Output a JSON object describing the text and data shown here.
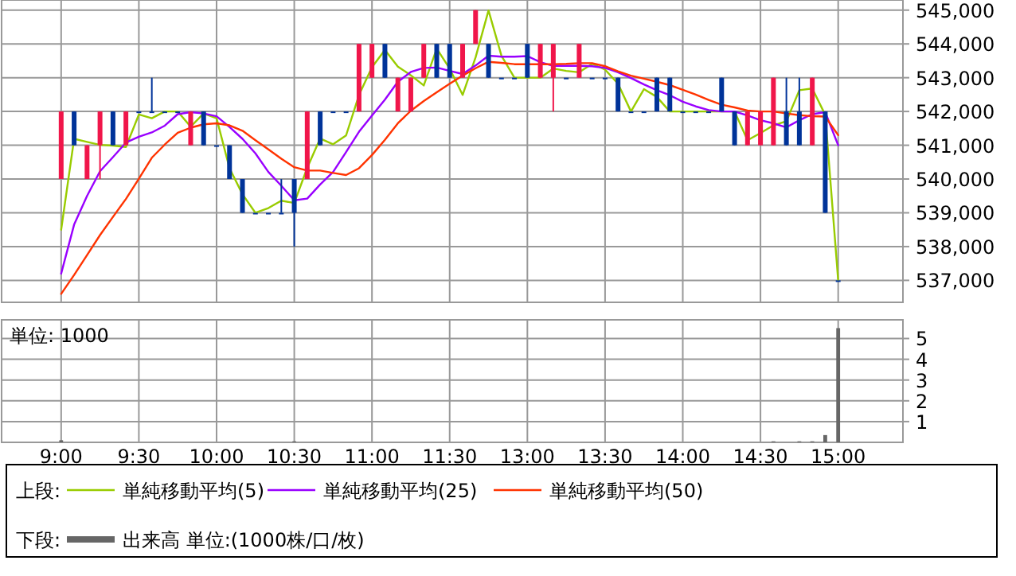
{
  "chart_data": [
    {
      "type": "candlestick",
      "categories": [
        null,
        null,
        null,
        null,
        null,
        null,
        null,
        null,
        null,
        null,
        null,
        null,
        null,
        null,
        null,
        null,
        null,
        null,
        null,
        null,
        null,
        null,
        null,
        null,
        null,
        null,
        null,
        null,
        null,
        null,
        null,
        null,
        null,
        null,
        null,
        null,
        null,
        null,
        null,
        null,
        null,
        null,
        null,
        null,
        null,
        null,
        null,
        null,
        null,
        null,
        null,
        null,
        null,
        null,
        null,
        null,
        null,
        null,
        null,
        null,
        null
      ],
      "ohlc": [
        [
          540000,
          542000,
          540000,
          542000
        ],
        [
          542000,
          542000,
          541000,
          541000
        ],
        [
          540000,
          541000,
          540000,
          541000
        ],
        [
          541000,
          542000,
          540000,
          542000
        ],
        [
          542000,
          542000,
          541000,
          541000
        ],
        [
          541000,
          542000,
          541000,
          542000
        ],
        [
          542000,
          542000,
          542000,
          542000
        ],
        [
          542000,
          543000,
          542000,
          542000
        ],
        [
          542000,
          542000,
          542000,
          542000
        ],
        [
          542000,
          542000,
          542000,
          542000
        ],
        [
          541000,
          542000,
          541000,
          542000
        ],
        [
          542000,
          542000,
          541000,
          541000
        ],
        [
          541000,
          541000,
          541000,
          541000
        ],
        [
          541000,
          541000,
          540000,
          540000
        ],
        [
          540000,
          540000,
          539000,
          539000
        ],
        [
          539000,
          539000,
          539000,
          539000
        ],
        [
          539000,
          539000,
          539000,
          539000
        ],
        [
          539000,
          540000,
          539000,
          539000
        ],
        [
          540000,
          540000,
          538000,
          539000
        ],
        [
          540000,
          542000,
          540000,
          542000
        ],
        [
          542000,
          542000,
          541000,
          541000
        ],
        [
          542000,
          542000,
          542000,
          542000
        ],
        [
          542000,
          542000,
          542000,
          542000
        ],
        [
          542000,
          544000,
          542000,
          544000
        ],
        [
          543000,
          544000,
          543000,
          544000
        ],
        [
          544000,
          544000,
          543000,
          543000
        ],
        [
          542000,
          543000,
          542000,
          543000
        ],
        [
          542000,
          543000,
          542000,
          543000
        ],
        [
          543000,
          544000,
          543000,
          544000
        ],
        [
          544000,
          544000,
          543000,
          543000
        ],
        [
          544000,
          544000,
          543000,
          543000
        ],
        [
          543000,
          544000,
          543000,
          544000
        ],
        [
          544000,
          545000,
          544000,
          545000
        ],
        [
          544000,
          544000,
          543000,
          543000
        ],
        [
          543000,
          543000,
          543000,
          543000
        ],
        [
          543000,
          543000,
          543000,
          543000
        ],
        [
          544000,
          544000,
          543000,
          543000
        ],
        [
          543000,
          544000,
          543000,
          544000
        ],
        [
          543000,
          544000,
          542000,
          544000
        ],
        [
          543000,
          543000,
          543000,
          543000
        ],
        [
          543000,
          544000,
          543000,
          544000
        ],
        [
          543000,
          543000,
          543000,
          543000
        ],
        [
          543000,
          543000,
          543000,
          543000
        ],
        [
          543000,
          543000,
          542000,
          542000
        ],
        [
          542000,
          542000,
          542000,
          542000
        ],
        [
          542000,
          542000,
          542000,
          542000
        ],
        [
          543000,
          543000,
          542000,
          542000
        ],
        [
          543000,
          543000,
          542000,
          542000
        ],
        [
          542000,
          542000,
          542000,
          542000
        ],
        [
          542000,
          542000,
          542000,
          542000
        ],
        [
          542000,
          542000,
          542000,
          542000
        ],
        [
          543000,
          543000,
          542000,
          542000
        ],
        [
          542000,
          542000,
          541000,
          541000
        ],
        [
          541000,
          542000,
          541000,
          542000
        ],
        [
          541000,
          542000,
          541000,
          542000
        ],
        [
          541000,
          543000,
          541000,
          543000
        ],
        [
          542000,
          543000,
          541000,
          541000
        ],
        [
          542000,
          543000,
          541000,
          541000
        ],
        [
          541000,
          543000,
          541000,
          543000
        ],
        [
          542000,
          542000,
          539000,
          539000
        ],
        [
          537000,
          537000,
          537000,
          537000
        ]
      ],
      "colors": [
        "#f0164a",
        "#003399",
        "#f0164a",
        "#f0164a",
        "#003399",
        "#f0164a",
        "#003399",
        "#003399",
        "#003399",
        "#003399",
        "#f0164a",
        "#003399",
        "#003399",
        "#003399",
        "#003399",
        "#003399",
        "#003399",
        "#003399",
        "#003399",
        "#f0164a",
        "#003399",
        "#003399",
        "#003399",
        "#f0164a",
        "#f0164a",
        "#003399",
        "#f0164a",
        "#f0164a",
        "#f0164a",
        "#003399",
        "#003399",
        "#f0164a",
        "#f0164a",
        "#003399",
        "#003399",
        "#003399",
        "#003399",
        "#f0164a",
        "#f0164a",
        "#003399",
        "#f0164a",
        "#003399",
        "#003399",
        "#003399",
        "#003399",
        "#003399",
        "#003399",
        "#003399",
        "#003399",
        "#003399",
        "#003399",
        "#003399",
        "#003399",
        "#f0164a",
        "#f0164a",
        "#f0164a",
        "#003399",
        "#003399",
        "#f0164a",
        "#003399",
        "#003399"
      ],
      "series": [
        {
          "name": "単純移動平均(5)",
          "type": "line",
          "color": "#99cc00",
          "values": [
            538500,
            541190,
            541100,
            541010,
            540990,
            540950,
            541910,
            541800,
            542000,
            542000,
            541550,
            541940,
            541800,
            540320,
            539550,
            539000,
            539140,
            539360,
            539290,
            540330,
            541200,
            541030,
            541290,
            542490,
            543310,
            543820,
            543330,
            543070,
            542770,
            543860,
            543270,
            542490,
            543600,
            544990,
            543650,
            543000,
            543000,
            543000,
            543270,
            543200,
            543160,
            543410,
            543240,
            542820,
            542000,
            542660,
            542430,
            542000,
            542000,
            542000,
            542000,
            542000,
            542000,
            541150,
            541360,
            541590,
            541710,
            542630,
            542680,
            541900,
            537000
          ]
        },
        {
          "name": "単純移動平均(25)",
          "type": "line",
          "color": "#9900ff",
          "values": [
            537200,
            538650,
            539500,
            540230,
            540650,
            541080,
            541250,
            541380,
            541580,
            541920,
            541980,
            541940,
            541860,
            541540,
            541190,
            540760,
            540210,
            539800,
            539370,
            539420,
            539840,
            540210,
            540800,
            541400,
            541880,
            542350,
            542880,
            543170,
            543290,
            543300,
            543200,
            543110,
            543360,
            543650,
            543620,
            543620,
            543640,
            543460,
            543350,
            543350,
            543350,
            543340,
            543290,
            543160,
            542990,
            542800,
            542630,
            542480,
            542290,
            542150,
            542040,
            542000,
            542000,
            541880,
            541740,
            541650,
            541530,
            541740,
            541920,
            541980,
            541000
          ]
        },
        {
          "name": "単純移動平均(50)",
          "type": "line",
          "color": "#ff3300",
          "values": [
            536600,
            537160,
            537750,
            538340,
            538880,
            539410,
            540010,
            540630,
            541020,
            541370,
            541520,
            541620,
            541650,
            541590,
            541430,
            541150,
            540880,
            540600,
            540350,
            540250,
            540250,
            540180,
            540120,
            540320,
            540710,
            541160,
            541650,
            542020,
            542310,
            542570,
            542820,
            543060,
            543280,
            543470,
            543440,
            543400,
            543400,
            543400,
            543400,
            543410,
            543430,
            543430,
            543340,
            543190,
            543060,
            542970,
            542880,
            542780,
            542640,
            542500,
            542340,
            542200,
            542120,
            542030,
            542000,
            542000,
            541940,
            541890,
            541860,
            541850,
            541300
          ]
        }
      ],
      "ylim": [
        536350,
        545300
      ],
      "yticks": [
        {
          "value": 537000,
          "label": "537,000"
        },
        {
          "value": 538000,
          "label": "538,000"
        },
        {
          "value": 539000,
          "label": "539,000"
        },
        {
          "value": 540000,
          "label": "540,000"
        },
        {
          "value": 541000,
          "label": "541,000"
        },
        {
          "value": 542000,
          "label": "542,000"
        },
        {
          "value": 543000,
          "label": "543,000"
        },
        {
          "value": 544000,
          "label": "544,000"
        },
        {
          "value": 545000,
          "label": "545,000"
        }
      ],
      "grid": true,
      "tick_labels": "y",
      "legend": "bottom",
      "legend_title": "上段:"
    },
    {
      "type": "bar",
      "categories": [
        "9:00",
        null,
        null,
        null,
        null,
        null,
        "9:30",
        null,
        null,
        null,
        null,
        null,
        "10:00",
        null,
        null,
        null,
        null,
        null,
        "10:30",
        null,
        null,
        null,
        null,
        null,
        "11:00",
        null,
        null,
        null,
        null,
        null,
        "11:30",
        null,
        null,
        null,
        null,
        null,
        "13:00",
        null,
        null,
        null,
        null,
        null,
        "13:30",
        null,
        null,
        null,
        null,
        null,
        "14:00",
        null,
        null,
        null,
        null,
        null,
        "14:30",
        null,
        null,
        null,
        null,
        null,
        "15:00"
      ],
      "series": [
        {
          "name": "出来高 単位:(1000株/口/枚)",
          "color": "#666666",
          "values": [
            0.1,
            null,
            null,
            null,
            null,
            null,
            null,
            null,
            null,
            null,
            null,
            null,
            null,
            null,
            null,
            null,
            null,
            null,
            0.05,
            null,
            null,
            null,
            null,
            null,
            null,
            null,
            null,
            null,
            null,
            null,
            null,
            null,
            null,
            null,
            null,
            null,
            null,
            null,
            null,
            null,
            null,
            null,
            null,
            null,
            null,
            null,
            null,
            null,
            null,
            null,
            null,
            null,
            null,
            null,
            null,
            0.05,
            null,
            0.05,
            0.05,
            0.35,
            5.5
          ]
        }
      ],
      "ylim": [
        0,
        5.9
      ],
      "yticks": [
        1,
        2,
        3,
        4,
        5
      ],
      "grid": true,
      "legend": "bottom",
      "legend_title": "下段:",
      "annotations": [
        "単位: 1000"
      ]
    }
  ]
}
